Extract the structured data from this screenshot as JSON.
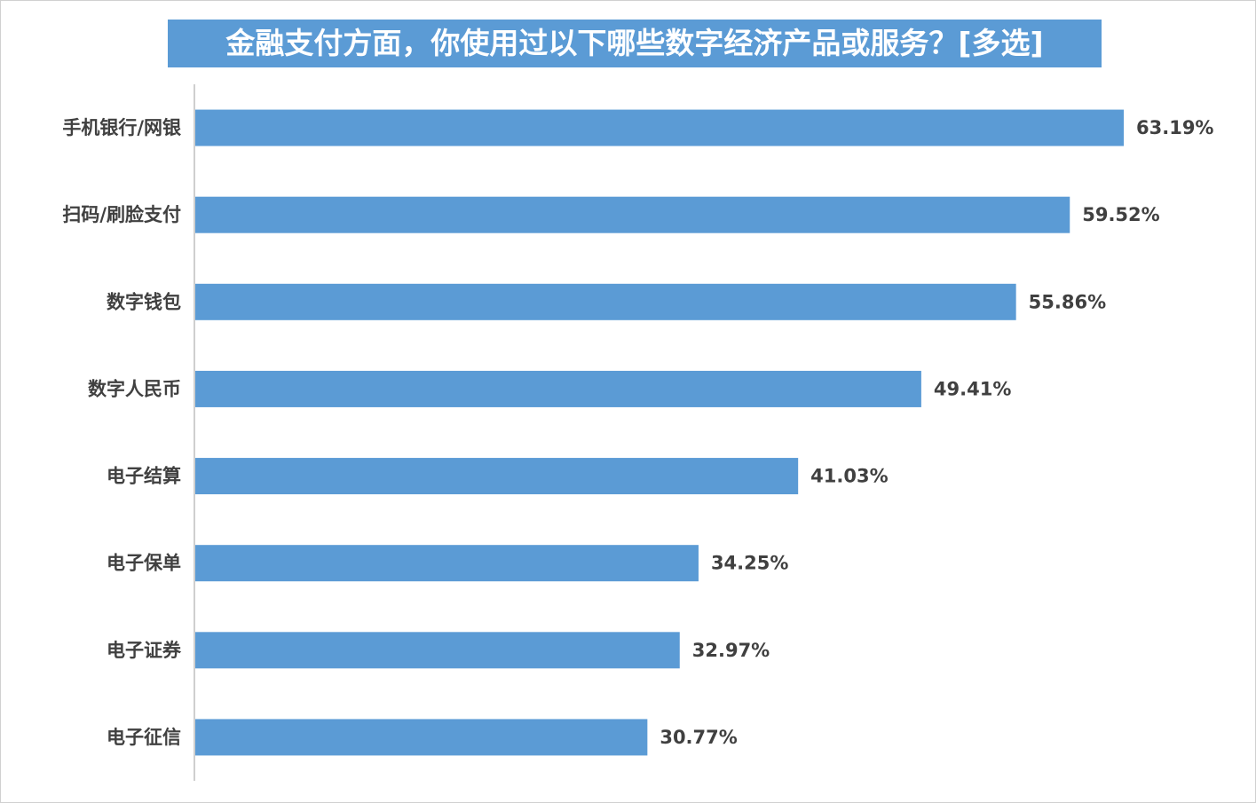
{
  "chart_data": {
    "type": "bar",
    "orientation": "horizontal",
    "title": "金融支付方面，你使用过以下哪些数字经济产品或服务？[多选]",
    "categories": [
      "手机银行/网银",
      "扫码/刷脸支付",
      "数字钱包",
      "数字人民币",
      "电子结算",
      "电子保单",
      "电子证券",
      "电子征信"
    ],
    "values": [
      63.19,
      59.52,
      55.86,
      49.41,
      41.03,
      34.25,
      32.97,
      30.77
    ],
    "value_labels": [
      "63.19%",
      "59.52%",
      "55.86%",
      "49.41%",
      "41.03%",
      "34.25%",
      "32.97%",
      "30.77%"
    ],
    "unit": "%",
    "xlim": [
      0,
      70
    ],
    "grid": false,
    "legend": "none",
    "colors": {
      "bar": "#5b9bd5",
      "title_bg": "#5b9bd5",
      "title_text": "#ffffff",
      "label_text": "#404040",
      "axis": "#bfbfbf"
    }
  }
}
